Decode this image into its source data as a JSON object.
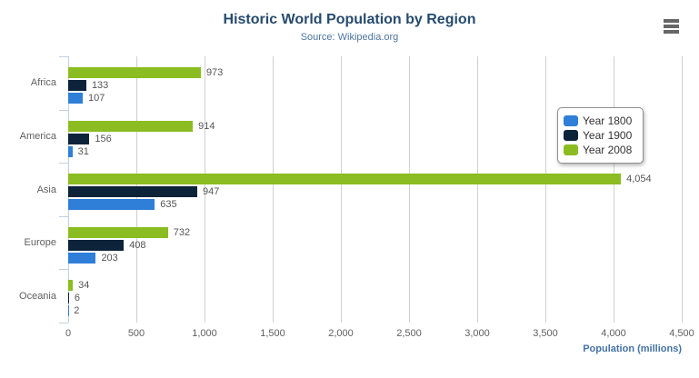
{
  "header": {
    "title": "Historic World Population by Region",
    "subtitle": "Source: Wikipedia.org"
  },
  "colors": {
    "grid_line": "#d0d0d0",
    "category_axis_line": "#c0d0e0",
    "axis_label": "#606060",
    "data_label": "#555555",
    "title": "#274b6d",
    "subtitle": "#4d759e",
    "axis_title": "#4572a7",
    "legend_border": "#909090",
    "menu_icon": "#666666"
  },
  "chart_data": {
    "type": "bar",
    "orientation": "horizontal",
    "title": "Historic World Population by Region",
    "subtitle": "Source: Wikipedia.org",
    "categories": [
      "Africa",
      "America",
      "Asia",
      "Europe",
      "Oceania"
    ],
    "series": [
      {
        "name": "Year 1800",
        "color": "#2f7ed8",
        "values": [
          107,
          31,
          635,
          203,
          2
        ]
      },
      {
        "name": "Year 1900",
        "color": "#0d233a",
        "values": [
          133,
          156,
          947,
          408,
          6
        ]
      },
      {
        "name": "Year 2008",
        "color": "#8bbc21",
        "values": [
          973,
          914,
          4054,
          732,
          34
        ]
      }
    ],
    "bar_display_order_top_to_bottom": [
      "Year 2008",
      "Year 1900",
      "Year 1800"
    ],
    "data_labels": true,
    "data_label_format": "thousands-comma",
    "xlabel": "Population (millions)",
    "xlim": [
      0,
      4500
    ],
    "x_ticks": [
      0,
      500,
      1000,
      1500,
      2000,
      2500,
      3000,
      3500,
      4000,
      4500
    ],
    "grid": true,
    "legend_position": "right-inside"
  }
}
